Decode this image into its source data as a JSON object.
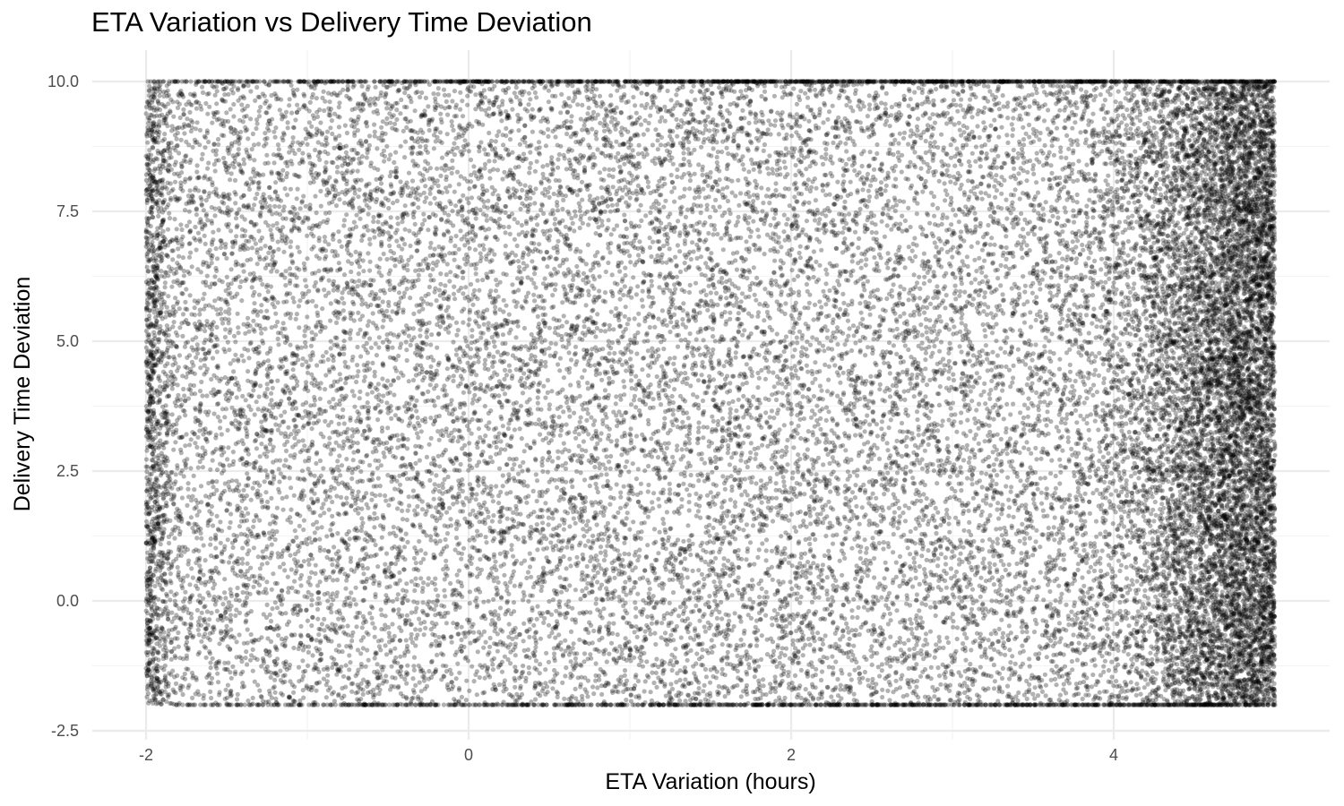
{
  "chart_data": {
    "type": "scatter",
    "title": "ETA Variation vs Delivery Time Deviation",
    "xlabel": "ETA Variation (hours)",
    "ylabel": "Delivery Time Deviation",
    "xlim": [
      -2,
      5
    ],
    "ylim": [
      -2,
      10
    ],
    "x_ticks": [
      -2,
      0,
      2,
      4
    ],
    "x_tick_labels": [
      "-2",
      "0",
      "2",
      "4"
    ],
    "y_ticks": [
      -2.5,
      0,
      2.5,
      5,
      7.5,
      10
    ],
    "y_tick_labels": [
      "-2.5",
      "0.0",
      "2.5",
      "5.0",
      "7.5",
      "10.0"
    ],
    "grid": true,
    "legend": "none",
    "point_color": "#000000",
    "point_opacity": 0.3,
    "distribution": {
      "x_uniform_range": [
        -2,
        5
      ],
      "y_uniform_range": [
        -2,
        10
      ],
      "clipped_to_bounds": true,
      "points_on_x_max": true,
      "points_on_y_min_and_max": true,
      "approx_points": 30000
    }
  }
}
